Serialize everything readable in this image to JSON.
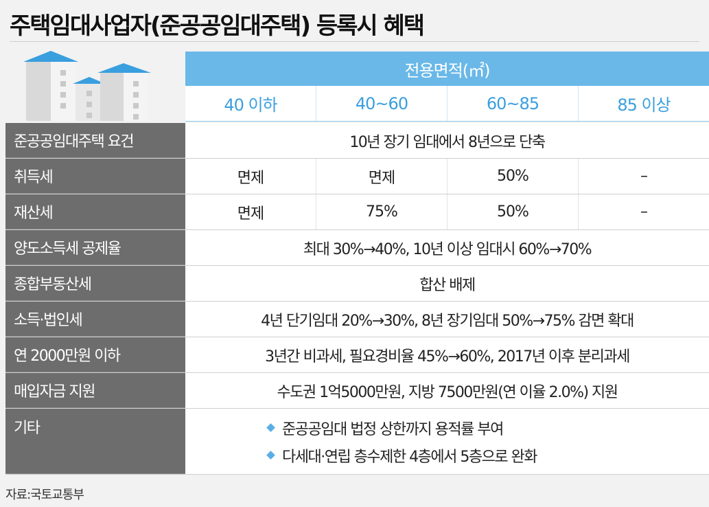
{
  "title": "주택임대사업자(준공공임대주택) 등록시 혜택",
  "area_header": "전용면적(㎡)",
  "columns": [
    "40 이하",
    "40~60",
    "60~85",
    "85 이상"
  ],
  "rows": [
    {
      "label": "준공공임대주택 요건",
      "span": "10년 장기 임대에서 8년으로 단축"
    },
    {
      "label": "취득세",
      "cells": [
        "면제",
        "면제",
        "50%",
        "–"
      ]
    },
    {
      "label": "재산세",
      "cells": [
        "면제",
        "75%",
        "50%",
        "–"
      ]
    },
    {
      "label": "양도소득세 공제율",
      "span": "최대 30%→40%, 10년 이상 임대시 60%→70%"
    },
    {
      "label": "종합부동산세",
      "span": "합산 배제"
    },
    {
      "label": "소득·법인세",
      "span": "4년 단기임대 20%→30%, 8년 장기임대 50%→75% 감면 확대"
    },
    {
      "label": "연 2000만원 이하",
      "span": "3년간 비과세, 필요경비율 45%→60%, 2017년 이후 분리과세"
    },
    {
      "label": "매입자금 지원",
      "span": "수도권 1억5000만원, 지방 7500만원(연 이율 2.0%) 지원"
    },
    {
      "label": "기타",
      "bullets": [
        "준공공임대 법정 상한까지 용적률 부여",
        "다세대·연립 층수제한 4층에서 5층으로 완화"
      ]
    }
  ],
  "source": "자료:국토교통부",
  "colors": {
    "header_blue": "#6ab8e8",
    "label_gray": "#6d6d6d",
    "accent_blue": "#3a9fde"
  },
  "icons": [
    "building-illustration-icon",
    "diamond-bullet-icon"
  ]
}
